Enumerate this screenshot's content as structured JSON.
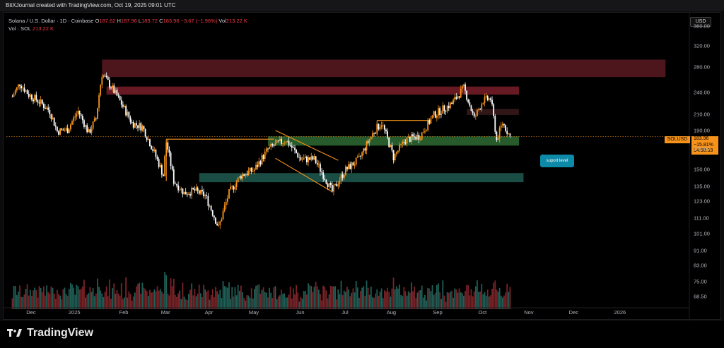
{
  "header": {
    "caption": "BitXJournal created with TradingView.com, Oct 19, 2025 09:01 UTC"
  },
  "legend": {
    "symbol_line": "Solana / U.S. Dollar · 1D · Coinbase",
    "open_label": "O",
    "open": "187.62",
    "high_label": "H",
    "high": "187.96",
    "low_label": "L",
    "low": "183.72",
    "close_label": "C",
    "close": "183.96",
    "change": "−3.67 (−1.96%)",
    "vol_label": "Vol",
    "vol": "213.22 K",
    "vol_line_label": "Vol · SOL",
    "vol_line_value": "213.22 K"
  },
  "currency_badge": "USD",
  "price_tag": {
    "symbol": "SOLUSD",
    "price": "183.96",
    "change": "−15.81%",
    "countdown": "14:58:33"
  },
  "annotation": "suport level",
  "footer": {
    "brand": "TradingView"
  },
  "colors": {
    "up": "#f7931a",
    "down": "#ffffff",
    "supply_zone": "#5a1a22",
    "supply_zone_strong": "#7a1f2a",
    "demand_zone": "#2e6b34",
    "support_zone": "#1f5a4f",
    "resistance_small": "#3a1a1c",
    "vol_up": "#1f5f56",
    "vol_down": "#7a2328"
  },
  "chart_data": {
    "type": "candlestick",
    "symbol": "SOLUSD",
    "y_axis_ticks": [
      "360.00",
      "320.00",
      "280.00",
      "240.00",
      "210.00",
      "190.00",
      "170.00",
      "150.00",
      "135.00",
      "123.00",
      "111.00",
      "101.00",
      "91.00",
      "83.00",
      "75.00",
      "68.50"
    ],
    "x_axis_ticks": [
      "Dec",
      "2025",
      "Feb",
      "Mar",
      "Apr",
      "May",
      "Jun",
      "Jul",
      "Aug",
      "Sep",
      "Oct",
      "Nov",
      "Dec",
      "2026"
    ],
    "ylim": [
      66,
      380
    ],
    "scale": "log",
    "price_path": [
      {
        "date": "2024-11-20",
        "close": 235
      },
      {
        "date": "2024-11-25",
        "close": 255
      },
      {
        "date": "2024-12-01",
        "close": 238
      },
      {
        "date": "2024-12-08",
        "close": 228
      },
      {
        "date": "2024-12-15",
        "close": 215
      },
      {
        "date": "2024-12-20",
        "close": 190
      },
      {
        "date": "2024-12-27",
        "close": 192
      },
      {
        "date": "2025-01-03",
        "close": 215
      },
      {
        "date": "2025-01-10",
        "close": 188
      },
      {
        "date": "2025-01-15",
        "close": 205
      },
      {
        "date": "2025-01-19",
        "close": 270
      },
      {
        "date": "2025-01-25",
        "close": 250
      },
      {
        "date": "2025-02-01",
        "close": 225
      },
      {
        "date": "2025-02-08",
        "close": 200
      },
      {
        "date": "2025-02-15",
        "close": 195
      },
      {
        "date": "2025-02-22",
        "close": 170
      },
      {
        "date": "2025-03-01",
        "close": 145
      },
      {
        "date": "2025-03-03",
        "close": 178
      },
      {
        "date": "2025-03-08",
        "close": 140
      },
      {
        "date": "2025-03-15",
        "close": 130
      },
      {
        "date": "2025-03-22",
        "close": 132
      },
      {
        "date": "2025-03-29",
        "close": 128
      },
      {
        "date": "2025-04-07",
        "close": 105
      },
      {
        "date": "2025-04-14",
        "close": 130
      },
      {
        "date": "2025-04-22",
        "close": 145
      },
      {
        "date": "2025-05-01",
        "close": 150
      },
      {
        "date": "2025-05-10",
        "close": 170
      },
      {
        "date": "2025-05-15",
        "close": 175
      },
      {
        "date": "2025-05-22",
        "close": 180
      },
      {
        "date": "2025-06-01",
        "close": 160
      },
      {
        "date": "2025-06-10",
        "close": 160
      },
      {
        "date": "2025-06-22",
        "close": 131
      },
      {
        "date": "2025-07-01",
        "close": 150
      },
      {
        "date": "2025-07-10",
        "close": 160
      },
      {
        "date": "2025-07-20",
        "close": 190
      },
      {
        "date": "2025-07-25",
        "close": 200
      },
      {
        "date": "2025-08-02",
        "close": 162
      },
      {
        "date": "2025-08-10",
        "close": 180
      },
      {
        "date": "2025-08-20",
        "close": 185
      },
      {
        "date": "2025-08-29",
        "close": 210
      },
      {
        "date": "2025-09-10",
        "close": 225
      },
      {
        "date": "2025-09-18",
        "close": 248
      },
      {
        "date": "2025-09-25",
        "close": 205
      },
      {
        "date": "2025-10-01",
        "close": 230
      },
      {
        "date": "2025-10-06",
        "close": 232
      },
      {
        "date": "2025-10-10",
        "close": 180
      },
      {
        "date": "2025-10-14",
        "close": 200
      },
      {
        "date": "2025-10-19",
        "close": 184
      }
    ],
    "zones": [
      {
        "name": "supply_top",
        "low": 265,
        "high": 295,
        "from": "2025-01-19",
        "to": "2026-01-31"
      },
      {
        "name": "supply",
        "low": 238,
        "high": 250,
        "from": "2025-01-22",
        "to": "2025-10-25"
      },
      {
        "name": "resistance_small",
        "low": 210,
        "high": 218,
        "from": "2025-09-20",
        "to": "2025-10-25"
      },
      {
        "name": "support",
        "low": 174,
        "high": 184,
        "from": "2025-05-10",
        "to": "2025-10-25"
      },
      {
        "name": "demand",
        "low": 139,
        "high": 147,
        "from": "2025-03-25",
        "to": "2025-10-28"
      }
    ]
  }
}
